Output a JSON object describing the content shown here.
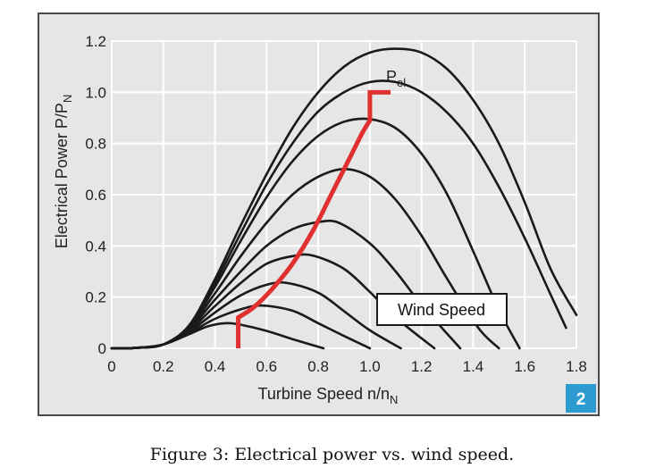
{
  "chart_data": {
    "type": "line",
    "xlabel": "Turbine Speed n/n",
    "xlabel_sub": "N",
    "ylabel": "Electrical Power P/P",
    "ylabel_sub": "N",
    "xlim": [
      0,
      1.8
    ],
    "ylim": [
      0,
      1.2
    ],
    "x_ticks": [
      "0",
      "0.2",
      "0.4",
      "0.6",
      "0.8",
      "1.0",
      "1.2",
      "1.4",
      "1.6",
      "1.8"
    ],
    "y_ticks": [
      "0",
      "0.2",
      "0.4",
      "0.6",
      "0.8",
      "1.0",
      "1.2"
    ],
    "grid": true,
    "annotation_box": "Wind Speed",
    "pel_label": "P",
    "pel_sub": "el",
    "figure_badge": "2",
    "series": [
      {
        "points": [
          [
            0.0,
            0.0
          ],
          [
            0.1,
            0.002
          ],
          [
            0.2,
            0.015
          ],
          [
            0.3,
            0.055
          ],
          [
            0.37,
            0.085
          ],
          [
            0.44,
            0.098
          ],
          [
            0.5,
            0.092
          ],
          [
            0.6,
            0.068
          ],
          [
            0.7,
            0.036
          ],
          [
            0.82,
            0.0
          ]
        ]
      },
      {
        "points": [
          [
            0.0,
            0.0
          ],
          [
            0.1,
            0.002
          ],
          [
            0.2,
            0.015
          ],
          [
            0.3,
            0.06
          ],
          [
            0.4,
            0.115
          ],
          [
            0.5,
            0.152
          ],
          [
            0.58,
            0.167
          ],
          [
            0.7,
            0.147
          ],
          [
            0.8,
            0.098
          ],
          [
            0.9,
            0.048
          ],
          [
            1.0,
            0.0
          ]
        ]
      },
      {
        "points": [
          [
            0.0,
            0.0
          ],
          [
            0.1,
            0.002
          ],
          [
            0.2,
            0.015
          ],
          [
            0.3,
            0.065
          ],
          [
            0.4,
            0.14
          ],
          [
            0.5,
            0.207
          ],
          [
            0.6,
            0.248
          ],
          [
            0.68,
            0.255
          ],
          [
            0.8,
            0.217
          ],
          [
            0.9,
            0.145
          ],
          [
            1.0,
            0.07
          ],
          [
            1.12,
            0.0
          ]
        ]
      },
      {
        "points": [
          [
            0.0,
            0.0
          ],
          [
            0.1,
            0.002
          ],
          [
            0.2,
            0.015
          ],
          [
            0.3,
            0.07
          ],
          [
            0.4,
            0.165
          ],
          [
            0.5,
            0.255
          ],
          [
            0.6,
            0.33
          ],
          [
            0.7,
            0.36
          ],
          [
            0.78,
            0.362
          ],
          [
            0.9,
            0.31
          ],
          [
            1.0,
            0.22
          ],
          [
            1.1,
            0.12
          ],
          [
            1.25,
            0.0
          ]
        ]
      },
      {
        "points": [
          [
            0.0,
            0.0
          ],
          [
            0.1,
            0.002
          ],
          [
            0.2,
            0.015
          ],
          [
            0.3,
            0.075
          ],
          [
            0.4,
            0.19
          ],
          [
            0.5,
            0.3
          ],
          [
            0.6,
            0.4
          ],
          [
            0.7,
            0.465
          ],
          [
            0.8,
            0.493
          ],
          [
            0.88,
            0.49
          ],
          [
            1.0,
            0.41
          ],
          [
            1.1,
            0.3
          ],
          [
            1.2,
            0.17
          ],
          [
            1.35,
            0.0
          ]
        ]
      },
      {
        "points": [
          [
            0.0,
            0.0
          ],
          [
            0.1,
            0.002
          ],
          [
            0.2,
            0.015
          ],
          [
            0.3,
            0.08
          ],
          [
            0.4,
            0.215
          ],
          [
            0.5,
            0.36
          ],
          [
            0.6,
            0.49
          ],
          [
            0.7,
            0.6
          ],
          [
            0.8,
            0.67
          ],
          [
            0.9,
            0.7
          ],
          [
            1.0,
            0.67
          ],
          [
            1.1,
            0.58
          ],
          [
            1.2,
            0.44
          ],
          [
            1.3,
            0.27
          ],
          [
            1.42,
            0.08
          ],
          [
            1.5,
            0.0
          ]
        ]
      },
      {
        "points": [
          [
            0.0,
            0.0
          ],
          [
            0.1,
            0.002
          ],
          [
            0.2,
            0.015
          ],
          [
            0.3,
            0.085
          ],
          [
            0.4,
            0.24
          ],
          [
            0.5,
            0.42
          ],
          [
            0.6,
            0.59
          ],
          [
            0.7,
            0.73
          ],
          [
            0.8,
            0.83
          ],
          [
            0.9,
            0.885
          ],
          [
            1.0,
            0.895
          ],
          [
            1.1,
            0.86
          ],
          [
            1.2,
            0.76
          ],
          [
            1.3,
            0.6
          ],
          [
            1.4,
            0.38
          ],
          [
            1.5,
            0.15
          ],
          [
            1.58,
            0.0
          ]
        ]
      },
      {
        "points": [
          [
            0.0,
            0.0
          ],
          [
            0.1,
            0.002
          ],
          [
            0.2,
            0.015
          ],
          [
            0.3,
            0.09
          ],
          [
            0.4,
            0.27
          ],
          [
            0.5,
            0.48
          ],
          [
            0.6,
            0.68
          ],
          [
            0.7,
            0.86
          ],
          [
            0.8,
            1.0
          ],
          [
            0.9,
            1.1
          ],
          [
            1.0,
            1.155
          ],
          [
            1.1,
            1.17
          ],
          [
            1.2,
            1.155
          ],
          [
            1.3,
            1.09
          ],
          [
            1.4,
            0.97
          ],
          [
            1.5,
            0.8
          ],
          [
            1.6,
            0.57
          ],
          [
            1.7,
            0.31
          ],
          [
            1.8,
            0.13
          ]
        ]
      },
      {
        "points": [
          [
            0.0,
            0.0
          ],
          [
            0.1,
            0.002
          ],
          [
            0.2,
            0.015
          ],
          [
            0.3,
            0.088
          ],
          [
            0.4,
            0.255
          ],
          [
            0.5,
            0.45
          ],
          [
            0.6,
            0.64
          ],
          [
            0.7,
            0.8
          ],
          [
            0.8,
            0.925
          ],
          [
            0.9,
            1.0
          ],
          [
            1.0,
            1.04
          ],
          [
            1.1,
            1.04
          ],
          [
            1.2,
            1.0
          ],
          [
            1.3,
            0.92
          ],
          [
            1.4,
            0.8
          ],
          [
            1.5,
            0.63
          ],
          [
            1.6,
            0.43
          ],
          [
            1.7,
            0.21
          ],
          [
            1.76,
            0.08
          ]
        ]
      }
    ],
    "power_curve": [
      [
        0.49,
        0.0
      ],
      [
        0.49,
        0.12
      ],
      [
        0.55,
        0.16
      ],
      [
        0.62,
        0.23
      ],
      [
        0.7,
        0.33
      ],
      [
        0.78,
        0.46
      ],
      [
        0.85,
        0.6
      ],
      [
        0.92,
        0.74
      ],
      [
        0.97,
        0.84
      ],
      [
        1.0,
        0.89
      ],
      [
        1.0,
        1.0
      ],
      [
        1.08,
        1.0
      ]
    ],
    "colors": {
      "curves": "#1a1a1a",
      "power_curve": "#e03030",
      "grid": "#ffffff",
      "plot_bg": "#e6e6e6",
      "badge_bg": "#2e9bd0"
    }
  },
  "caption": "Figure 3: Electrical power vs. wind speed."
}
